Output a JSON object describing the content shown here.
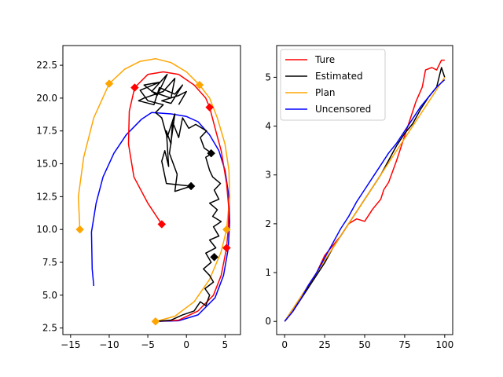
{
  "chart_data": [
    {
      "type": "line",
      "xlim": [
        -16,
        7
      ],
      "ylim": [
        2.0,
        24.0
      ],
      "xticks": [
        -15,
        -10,
        -5,
        0,
        5
      ],
      "xtick_labels": [
        "−15",
        "−10",
        "−5",
        "0",
        "5"
      ],
      "yticks": [
        2.5,
        5.0,
        7.5,
        10.0,
        12.5,
        15.0,
        17.5,
        20.0,
        22.5
      ],
      "ytick_labels": [
        "2.5",
        "5.0",
        "7.5",
        "10.0",
        "12.5",
        "15.0",
        "17.5",
        "20.0",
        "22.5"
      ],
      "grid": false,
      "series": [
        {
          "color": "#0000ff",
          "points": [
            [
              -12.0,
              5.7
            ],
            [
              -12.2,
              7.0
            ],
            [
              -12.3,
              9.8
            ],
            [
              -11.7,
              12.0
            ],
            [
              -10.8,
              14.0
            ],
            [
              -9.4,
              15.8
            ],
            [
              -7.8,
              17.2
            ],
            [
              -5.8,
              18.4
            ],
            [
              -4.5,
              18.9
            ],
            [
              -2.0,
              18.8
            ],
            [
              0.0,
              18.6
            ],
            [
              1.5,
              18.2
            ],
            [
              3.0,
              17.2
            ],
            [
              4.2,
              16.0
            ],
            [
              5.0,
              14.5
            ],
            [
              5.5,
              12.5
            ],
            [
              5.6,
              10.5
            ],
            [
              5.4,
              8.5
            ],
            [
              4.8,
              6.5
            ],
            [
              3.7,
              4.8
            ],
            [
              1.5,
              3.5
            ],
            [
              -1.0,
              3.05
            ],
            [
              -4.0,
              3.0
            ]
          ]
        },
        {
          "color": "#ffa500",
          "points": [
            [
              -4.0,
              3.0
            ],
            [
              -1.5,
              3.4
            ],
            [
              1.0,
              4.5
            ],
            [
              3.0,
              6.2
            ],
            [
              4.5,
              8.3
            ],
            [
              5.2,
              10.0
            ],
            [
              5.6,
              12.5
            ],
            [
              5.5,
              14.5
            ],
            [
              5.0,
              16.5
            ],
            [
              4.0,
              18.5
            ],
            [
              3.0,
              20.0
            ],
            [
              1.7,
              21.0
            ],
            [
              0.0,
              22.0
            ],
            [
              -2.0,
              22.7
            ],
            [
              -4.0,
              23.0
            ],
            [
              -6.0,
              22.8
            ],
            [
              -8.0,
              22.2
            ],
            [
              -10.0,
              21.1
            ],
            [
              -12.0,
              18.5
            ],
            [
              -13.3,
              15.5
            ],
            [
              -14.0,
              12.5
            ],
            [
              -13.8,
              10.0
            ]
          ]
        },
        {
          "color": "#ff0000",
          "points": [
            [
              -3.2,
              10.4
            ],
            [
              -5.0,
              12.0
            ],
            [
              -6.8,
              14.0
            ],
            [
              -7.5,
              16.5
            ],
            [
              -7.4,
              19.0
            ],
            [
              -6.7,
              20.8
            ],
            [
              -5.0,
              21.8
            ],
            [
              -3.0,
              22.0
            ],
            [
              -1.0,
              21.8
            ],
            [
              1.0,
              21.0
            ],
            [
              2.5,
              20.0
            ],
            [
              3.0,
              19.3
            ],
            [
              3.8,
              17.5
            ],
            [
              4.5,
              16.0
            ],
            [
              5.2,
              13.5
            ],
            [
              5.5,
              11.5
            ],
            [
              5.4,
              10.0
            ],
            [
              5.2,
              8.6
            ],
            [
              4.5,
              6.5
            ],
            [
              3.5,
              5.0
            ],
            [
              1.5,
              3.8
            ],
            [
              -1.0,
              3.1
            ],
            [
              -4.2,
              3.0
            ]
          ]
        },
        {
          "color": "#000000",
          "points": [
            [
              -4.0,
              3.0
            ],
            [
              -2.0,
              3.1
            ],
            [
              -0.5,
              3.5
            ],
            [
              1.0,
              3.8
            ],
            [
              1.8,
              4.5
            ],
            [
              2.5,
              4.2
            ],
            [
              3.0,
              5.0
            ],
            [
              2.4,
              5.5
            ],
            [
              3.5,
              6.0
            ],
            [
              3.0,
              6.5
            ],
            [
              2.2,
              7.0
            ],
            [
              3.2,
              7.5
            ],
            [
              2.5,
              8.2
            ],
            [
              3.8,
              8.6
            ],
            [
              3.0,
              9.2
            ],
            [
              4.2,
              9.5
            ],
            [
              3.5,
              10.2
            ],
            [
              4.5,
              10.6
            ],
            [
              3.4,
              11.0
            ],
            [
              4.0,
              11.5
            ],
            [
              3.0,
              12.0
            ],
            [
              4.2,
              12.3
            ],
            [
              3.6,
              13.0
            ],
            [
              4.4,
              13.5
            ],
            [
              3.4,
              14.0
            ],
            [
              3.0,
              14.5
            ],
            [
              2.5,
              15.5
            ],
            [
              3.3,
              15.8
            ],
            [
              2.3,
              16.2
            ],
            [
              1.8,
              17.0
            ],
            [
              2.6,
              17.5
            ],
            [
              1.2,
              18.0
            ],
            [
              0.3,
              17.7
            ],
            [
              -0.5,
              18.5
            ],
            [
              -1.0,
              17.0
            ],
            [
              -1.8,
              18.2
            ],
            [
              -2.0,
              16.5
            ],
            [
              -2.6,
              17.5
            ],
            [
              -2.3,
              14.8
            ],
            [
              -2.8,
              16.0
            ],
            [
              -3.2,
              15.2
            ],
            [
              -2.6,
              13.5
            ],
            [
              0.6,
              13.3
            ],
            [
              -1.5,
              12.9
            ],
            [
              -1.2,
              14.2
            ],
            [
              -2.2,
              15.8
            ],
            [
              -1.5,
              18.8
            ],
            [
              -2.5,
              17.0
            ],
            [
              -3.2,
              18.5
            ],
            [
              -4.0,
              18.9
            ],
            [
              -3.0,
              19.5
            ],
            [
              -5.0,
              19.8
            ],
            [
              -6.0,
              20.6
            ],
            [
              -3.5,
              21.2
            ],
            [
              -5.5,
              21.0
            ],
            [
              -3.8,
              20.2
            ],
            [
              -2.5,
              21.8
            ],
            [
              -4.5,
              20.5
            ],
            [
              -2.0,
              20.0
            ],
            [
              -1.5,
              21.5
            ],
            [
              -3.0,
              20.5
            ],
            [
              -5.5,
              20.0
            ],
            [
              -6.2,
              19.8
            ],
            [
              -4.2,
              19.5
            ],
            [
              -3.5,
              20.8
            ],
            [
              -1.5,
              20.3
            ],
            [
              -0.5,
              21.0
            ],
            [
              -2.0,
              19.6
            ],
            [
              -3.2,
              19.8
            ],
            [
              -1.0,
              20.2
            ],
            [
              0.0,
              20.5
            ],
            [
              -1.0,
              19.5
            ]
          ]
        }
      ],
      "markers": [
        {
          "color": "#ff0000",
          "x": -6.7,
          "y": 20.8
        },
        {
          "color": "#ff0000",
          "x": 3.0,
          "y": 19.3
        },
        {
          "color": "#ff0000",
          "x": -3.2,
          "y": 10.4
        },
        {
          "color": "#ff0000",
          "x": 5.2,
          "y": 8.6
        },
        {
          "color": "#ffa500",
          "x": -10.0,
          "y": 21.1
        },
        {
          "color": "#ffa500",
          "x": 1.7,
          "y": 21.0
        },
        {
          "color": "#ffa500",
          "x": -13.8,
          "y": 10.0
        },
        {
          "color": "#ffa500",
          "x": 5.2,
          "y": 10.0
        },
        {
          "color": "#ffa500",
          "x": -4.0,
          "y": 3.0
        },
        {
          "color": "#000000",
          "x": 3.2,
          "y": 15.8
        },
        {
          "color": "#000000",
          "x": 0.6,
          "y": 13.3
        },
        {
          "color": "#000000",
          "x": 3.6,
          "y": 7.9
        }
      ]
    },
    {
      "type": "line",
      "xlim": [
        -5,
        105
      ],
      "ylim": [
        -0.27,
        5.65
      ],
      "xticks": [
        0,
        25,
        50,
        75,
        100
      ],
      "xtick_labels": [
        "0",
        "25",
        "50",
        "75",
        "100"
      ],
      "yticks": [
        0,
        1,
        2,
        3,
        4,
        5
      ],
      "ytick_labels": [
        "0",
        "1",
        "2",
        "3",
        "4",
        "5"
      ],
      "grid": false,
      "legend_position": "upper-left",
      "series": [
        {
          "name": "Ture",
          "color": "#ff0000",
          "points": [
            [
              0,
              0.0
            ],
            [
              5,
              0.2
            ],
            [
              10,
              0.45
            ],
            [
              15,
              0.7
            ],
            [
              20,
              1.0
            ],
            [
              25,
              1.35
            ],
            [
              30,
              1.55
            ],
            [
              35,
              1.75
            ],
            [
              40,
              2.0
            ],
            [
              45,
              2.1
            ],
            [
              50,
              2.05
            ],
            [
              55,
              2.3
            ],
            [
              60,
              2.5
            ],
            [
              62,
              2.7
            ],
            [
              65,
              2.85
            ],
            [
              70,
              3.3
            ],
            [
              75,
              3.8
            ],
            [
              78,
              4.1
            ],
            [
              82,
              4.5
            ],
            [
              86,
              4.8
            ],
            [
              88,
              5.15
            ],
            [
              92,
              5.2
            ],
            [
              95,
              5.15
            ],
            [
              98,
              5.35
            ],
            [
              100,
              5.35
            ]
          ]
        },
        {
          "name": "Estimated",
          "color": "#000000",
          "points": [
            [
              0,
              0.0
            ],
            [
              5,
              0.25
            ],
            [
              10,
              0.45
            ],
            [
              15,
              0.7
            ],
            [
              20,
              0.95
            ],
            [
              25,
              1.2
            ],
            [
              30,
              1.5
            ],
            [
              35,
              1.75
            ],
            [
              40,
              2.0
            ],
            [
              45,
              2.25
            ],
            [
              50,
              2.5
            ],
            [
              55,
              2.75
            ],
            [
              60,
              3.0
            ],
            [
              65,
              3.3
            ],
            [
              70,
              3.6
            ],
            [
              75,
              3.85
            ],
            [
              80,
              4.05
            ],
            [
              85,
              4.35
            ],
            [
              90,
              4.6
            ],
            [
              95,
              4.8
            ],
            [
              98,
              5.2
            ],
            [
              100,
              5.0
            ]
          ]
        },
        {
          "name": "Plan",
          "color": "#ffa500",
          "points": [
            [
              0,
              0.0
            ],
            [
              10,
              0.5
            ],
            [
              20,
              1.0
            ],
            [
              30,
              1.5
            ],
            [
              40,
              2.0
            ],
            [
              50,
              2.5
            ],
            [
              60,
              3.0
            ],
            [
              70,
              3.5
            ],
            [
              80,
              4.0
            ],
            [
              90,
              4.5
            ],
            [
              100,
              5.0
            ]
          ]
        },
        {
          "name": "Uncensored",
          "color": "#0000ff",
          "points": [
            [
              0,
              0.0
            ],
            [
              5,
              0.2
            ],
            [
              10,
              0.45
            ],
            [
              15,
              0.75
            ],
            [
              20,
              1.0
            ],
            [
              25,
              1.3
            ],
            [
              30,
              1.6
            ],
            [
              35,
              1.9
            ],
            [
              40,
              2.15
            ],
            [
              45,
              2.45
            ],
            [
              50,
              2.7
            ],
            [
              55,
              2.95
            ],
            [
              60,
              3.2
            ],
            [
              65,
              3.45
            ],
            [
              70,
              3.65
            ],
            [
              75,
              3.9
            ],
            [
              80,
              4.15
            ],
            [
              85,
              4.4
            ],
            [
              90,
              4.6
            ],
            [
              95,
              4.8
            ],
            [
              100,
              4.95
            ]
          ]
        }
      ]
    }
  ]
}
